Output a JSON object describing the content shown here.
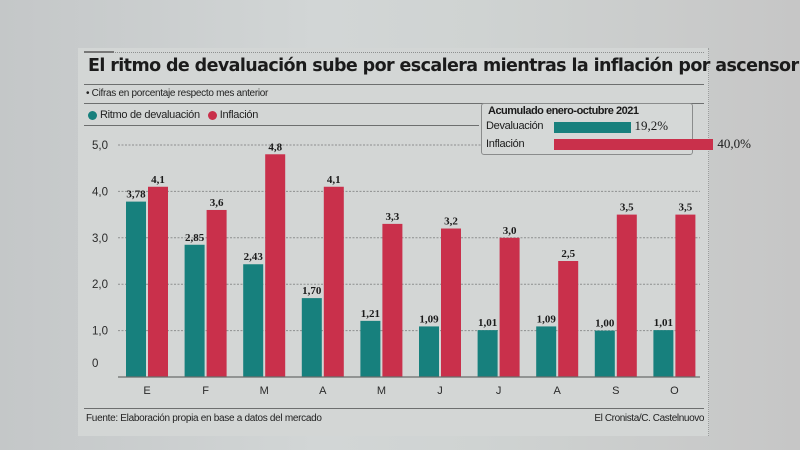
{
  "colors": {
    "devaluation": "#17807d",
    "inflation": "#c9304b",
    "grid": "#8d8f8f",
    "axis": "#6a6c6c",
    "text": "#1b1b1b"
  },
  "header": {
    "title": "El ritmo de devaluación sube por escalera mientras la inflación por ascensor",
    "subtitle": "• Cifras en porcentaje respecto mes anterior"
  },
  "legend": {
    "devaluation": "Ritmo de devaluación",
    "inflation": "Inflación"
  },
  "inset": {
    "title": "Acumulado enero-octubre 2021",
    "rows": [
      {
        "label": "Devaluación",
        "value": 19.2,
        "display": "19,2%"
      },
      {
        "label": "Inflación",
        "value": 40.0,
        "display": "40,0%"
      }
    ]
  },
  "footer": {
    "source": "Fuente: Elaboración propia en base a datos del mercado",
    "credit": "El Cronista/C. Castelnuovo"
  },
  "chart_data": {
    "type": "bar",
    "title": "El ritmo de devaluación sube por escalera mientras la inflación por ascensor",
    "subtitle": "Cifras en porcentaje respecto mes anterior",
    "xlabel": "",
    "ylabel": "",
    "ylim": [
      0,
      5.0
    ],
    "yticks": [
      0,
      1.0,
      2.0,
      3.0,
      4.0,
      5.0
    ],
    "ytick_labels": [
      "0",
      "1,0",
      "2,0",
      "3,0",
      "4,0",
      "5,0"
    ],
    "grid": true,
    "legend_position": "top-left",
    "categories": [
      "E",
      "F",
      "M",
      "A",
      "M",
      "J",
      "J",
      "A",
      "S",
      "O"
    ],
    "series": [
      {
        "name": "Ritmo de devaluación",
        "values": [
          3.78,
          2.85,
          2.43,
          1.7,
          1.21,
          1.09,
          1.01,
          1.09,
          1.0,
          1.01
        ],
        "labels": [
          "3,78",
          "2,85",
          "2,43",
          "1,70",
          "1,21",
          "1,09",
          "1,01",
          "1,09",
          "1,00",
          "1,01"
        ]
      },
      {
        "name": "Inflación",
        "values": [
          4.1,
          3.6,
          4.8,
          4.1,
          3.3,
          3.2,
          3.0,
          2.5,
          3.5,
          3.5
        ],
        "labels": [
          "4,1",
          "3,6",
          "4,8",
          "4,1",
          "3,3",
          "3,2",
          "3,0",
          "2,5",
          "3,5",
          "3,5"
        ]
      }
    ]
  }
}
